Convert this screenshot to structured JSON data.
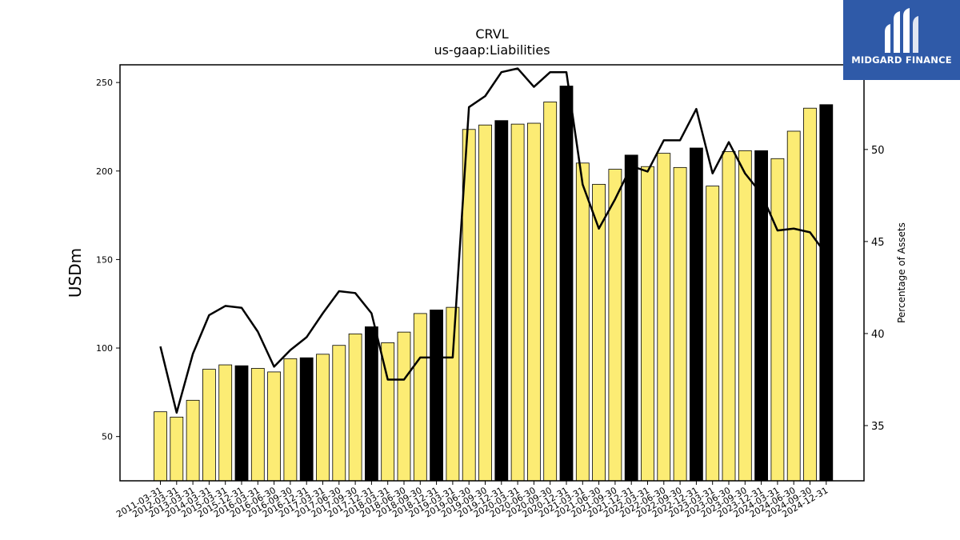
{
  "brand": {
    "name": "MIDGARD FINANCE"
  },
  "colors": {
    "bar_regular": "#fcec74",
    "bar_year_end": "#000000",
    "line": "#000000",
    "logo_bg": "#2f5aa8"
  },
  "chart_data": {
    "type": "bar",
    "title": "CRVL",
    "subtitle": "us-gaap:Liabilities",
    "ylabel": "USDm",
    "y2label": "Percentage of Assets",
    "ylim": [
      25,
      260
    ],
    "y2lim": [
      32.0,
      54.6
    ],
    "yticks": [
      50,
      100,
      150,
      200,
      250
    ],
    "y2ticks": [
      35,
      40,
      45,
      50
    ],
    "categories": [
      "2011-03-31",
      "2012-03-31",
      "2013-03-31",
      "2014-03-31",
      "2015-03-31",
      "2015-12-31",
      "2016-03-31",
      "2016-06-30",
      "2016-09-30",
      "2016-12-31",
      "2017-03-31",
      "2017-06-30",
      "2017-09-30",
      "2017-12-31",
      "2018-03-31",
      "2018-06-30",
      "2018-09-30",
      "2018-12-31",
      "2019-03-31",
      "2019-06-30",
      "2019-09-30",
      "2019-12-31",
      "2020-03-31",
      "2020-06-30",
      "2020-09-30",
      "2020-12-31",
      "2021-03-31",
      "2021-06-30",
      "2021-09-30",
      "2021-12-31",
      "2022-03-31",
      "2022-06-30",
      "2022-09-30",
      "2022-12-31",
      "2023-03-31",
      "2023-06-30",
      "2023-09-30",
      "2023-12-31",
      "2024-03-31",
      "2024-06-30",
      "2024-09-30",
      "2024-12-31"
    ],
    "series": [
      {
        "type": "bar",
        "values": [
          64,
          61,
          70.5,
          88,
          90.5,
          90,
          88.5,
          86.5,
          94,
          94.5,
          96.5,
          101.5,
          108,
          112,
          103,
          109,
          119.5,
          121.5,
          123,
          223.5,
          226,
          228.5,
          226.5,
          227,
          239,
          248,
          204.5,
          192.5,
          201,
          209,
          202.5,
          210,
          202,
          213,
          191.5,
          211,
          211.5,
          211.5,
          207,
          222.5,
          235.5,
          237.5
        ],
        "year_end": [
          false,
          false,
          false,
          false,
          false,
          true,
          false,
          false,
          false,
          true,
          false,
          false,
          false,
          true,
          false,
          false,
          false,
          true,
          false,
          false,
          false,
          true,
          false,
          false,
          false,
          true,
          false,
          false,
          false,
          true,
          false,
          false,
          false,
          true,
          false,
          false,
          false,
          true,
          false,
          false,
          false,
          true
        ]
      },
      {
        "type": "line",
        "axis": "right",
        "values": [
          39.3,
          35.7,
          38.9,
          41.0,
          41.5,
          41.4,
          40.1,
          38.2,
          39.1,
          39.8,
          41.1,
          42.3,
          42.2,
          41.1,
          37.5,
          37.5,
          38.7,
          38.7,
          38.7,
          52.3,
          52.9,
          54.2,
          54.4,
          53.4,
          54.2,
          54.2,
          48.1,
          45.7,
          47.3,
          49.1,
          48.8,
          50.5,
          50.5,
          52.2,
          48.7,
          50.4,
          48.7,
          47.6,
          45.6,
          45.7,
          45.5,
          44.3
        ]
      }
    ],
    "grid": false,
    "legend": "none"
  }
}
